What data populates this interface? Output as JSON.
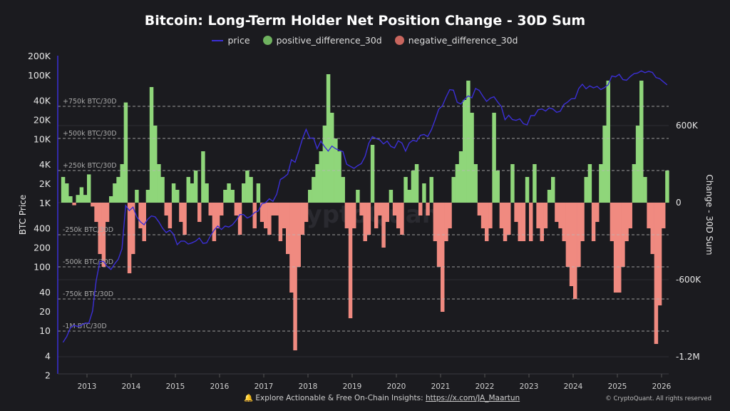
{
  "chart_data": {
    "type": "bar+line",
    "title": "Bitcoin: Long-Term Holder Net Position Change - 30D Sum",
    "legend": [
      "price",
      "positive_difference_30d",
      "negative_difference_30d"
    ],
    "legend_placement": "top",
    "left_axis": {
      "label": "BTC Price",
      "scale": "log",
      "ticks": [
        "200K",
        "100K",
        "40K",
        "20K",
        "10K",
        "4K",
        "2K",
        "1K",
        "400",
        "200",
        "100",
        "40",
        "20",
        "10",
        "4",
        "2"
      ],
      "range": [
        2,
        200000
      ]
    },
    "right_axis": {
      "label": "Change - 30D Sum",
      "ticks": [
        "600K",
        "0",
        "-600K",
        "-1.2M"
      ],
      "range": [
        -1300000,
        1100000
      ]
    },
    "x_ticks": [
      "2013",
      "2014",
      "2015",
      "2016",
      "2017",
      "2018",
      "2019",
      "2020",
      "2021",
      "2022",
      "2023",
      "2024",
      "2025",
      "2026"
    ],
    "reference_lines": [
      {
        "value": 750000,
        "label": "+750k BTC/30D"
      },
      {
        "value": 500000,
        "label": "+500k BTC/30D"
      },
      {
        "value": 250000,
        "label": "+250k BTC/30D"
      },
      {
        "value": -250000,
        "label": "-250k BTC/30D"
      },
      {
        "value": -500000,
        "label": "-500k BTC/30D"
      },
      {
        "value": -750000,
        "label": "-750k BTC/30D"
      },
      {
        "value": -1000000,
        "label": "-1M BTC/30D"
      }
    ],
    "start_month": "2012-06",
    "price": [
      6.5,
      8,
      11,
      12,
      11.5,
      12,
      13,
      13,
      20,
      60,
      120,
      120,
      100,
      90,
      110,
      130,
      190,
      900,
      750,
      850,
      600,
      500,
      450,
      550,
      620,
      600,
      500,
      400,
      340,
      370,
      320,
      220,
      250,
      250,
      225,
      235,
      250,
      280,
      230,
      235,
      300,
      370,
      430,
      380,
      430,
      415,
      450,
      530,
      650,
      650,
      575,
      610,
      700,
      740,
      960,
      1000,
      1150,
      1050,
      1350,
      2300,
      2500,
      2800,
      4700,
      4300,
      6400,
      10000,
      14000,
      10200,
      10300,
      7000,
      9200,
      7500,
      6400,
      7700,
      7000,
      6600,
      6300,
      4000,
      3700,
      3450,
      3800,
      4100,
      5300,
      8500,
      10800,
      10100,
      9600,
      8300,
      9200,
      7600,
      7200,
      9300,
      8600,
      6400,
      8600,
      9500,
      9100,
      11300,
      11700,
      10800,
      13800,
      19700,
      29000,
      33000,
      45000,
      58800,
      57700,
      37300,
      35000,
      41500,
      47100,
      43800,
      61300,
      57000,
      46300,
      38500,
      43200,
      45500,
      37700,
      31800,
      19900,
      23300,
      20000,
      19400,
      20500,
      17200,
      16500,
      23100,
      23100,
      28500,
      29300,
      27200,
      30500,
      29200,
      26000,
      27000,
      34500,
      37700,
      42300,
      42600,
      61200,
      71300,
      60700,
      67500,
      62700,
      66200,
      59000,
      63300,
      70200,
      96400,
      93400,
      102400,
      84400,
      82500,
      94200,
      104600,
      107100,
      115800,
      108200,
      114000,
      109500,
      91000,
      87500,
      78000,
      70000
    ],
    "net_position_change_30d": [
      200000,
      150000,
      50000,
      -20000,
      60000,
      120000,
      60000,
      220000,
      -30000,
      -150000,
      -400000,
      -500000,
      -150000,
      50000,
      150000,
      200000,
      300000,
      780000,
      -550000,
      -400000,
      100000,
      -200000,
      -300000,
      100000,
      900000,
      600000,
      300000,
      200000,
      -100000,
      -200000,
      150000,
      100000,
      -150000,
      -250000,
      200000,
      150000,
      250000,
      -150000,
      400000,
      150000,
      -100000,
      -300000,
      -200000,
      -100000,
      100000,
      150000,
      100000,
      -100000,
      -250000,
      150000,
      250000,
      200000,
      -200000,
      150000,
      -150000,
      -200000,
      -250000,
      -100000,
      -100000,
      -300000,
      -200000,
      -400000,
      -700000,
      -1150000,
      -500000,
      -250000,
      -150000,
      100000,
      200000,
      300000,
      400000,
      600000,
      1000000,
      700000,
      500000,
      400000,
      200000,
      -200000,
      -900000,
      -200000,
      100000,
      -100000,
      -300000,
      -250000,
      450000,
      -200000,
      -100000,
      -350000,
      -150000,
      100000,
      -100000,
      -200000,
      -250000,
      200000,
      100000,
      250000,
      300000,
      -100000,
      150000,
      -100000,
      200000,
      -300000,
      -500000,
      -850000,
      -300000,
      -200000,
      200000,
      300000,
      400000,
      800000,
      950000,
      700000,
      300000,
      -100000,
      -200000,
      -300000,
      -200000,
      700000,
      250000,
      -200000,
      -300000,
      -250000,
      300000,
      -150000,
      -300000,
      -300000,
      200000,
      -300000,
      300000,
      -200000,
      -300000,
      -200000,
      100000,
      200000,
      -150000,
      -200000,
      -300000,
      -500000,
      -650000,
      -750000,
      -500000,
      -300000,
      200000,
      300000,
      -300000,
      -150000,
      300000,
      600000,
      950000,
      -300000,
      -700000,
      -700000,
      -500000,
      -300000,
      -200000,
      300000,
      600000,
      950000,
      200000,
      -200000,
      -400000,
      -1100000,
      -800000,
      -200000,
      250000
    ]
  },
  "colors": {
    "price": "#3b2fd6",
    "positive": "#8fd67a",
    "negative": "#f08a80",
    "background": "#1b1b1f"
  },
  "footer": {
    "bell_icon": "bell-icon",
    "text": "Explore Actionable & Free On-Chain Insights: ",
    "link": "https://x.com/JA_Maartun",
    "copyright": "© CryptoQuant. All rights reserved"
  },
  "watermark": "CryptoQuant"
}
